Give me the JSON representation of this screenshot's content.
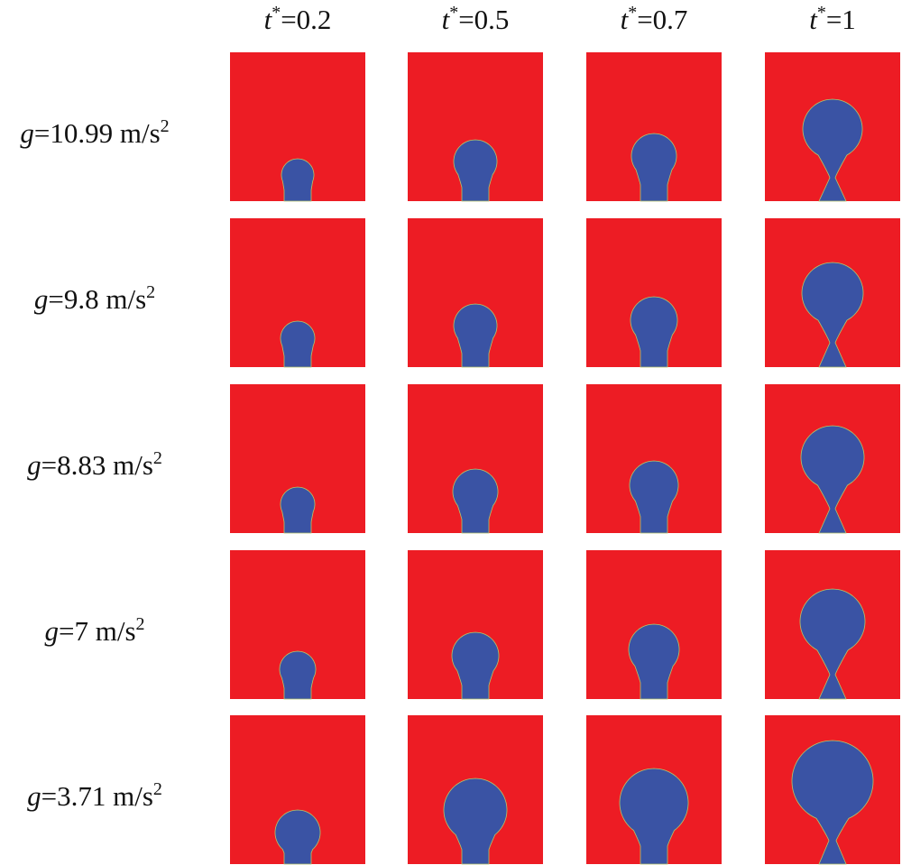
{
  "columns": [
    {
      "var": "t",
      "sup": "*",
      "rest": "=0.2"
    },
    {
      "var": "t",
      "sup": "*",
      "rest": "=0.5"
    },
    {
      "var": "t",
      "sup": "*",
      "rest": "=0.7"
    },
    {
      "var": "t",
      "sup": "*",
      "rest": "=1"
    }
  ],
  "rows": [
    {
      "var": "g",
      "rest": "=10.99 m/s",
      "sup": "2"
    },
    {
      "var": "g",
      "rest": "=9.8 m/s",
      "sup": "2"
    },
    {
      "var": "g",
      "rest": "=8.83 m/s",
      "sup": "2"
    },
    {
      "var": "g",
      "rest": "=7 m/s",
      "sup": "2"
    },
    {
      "var": "g",
      "rest": "=3.71 m/s",
      "sup": "2"
    }
  ]
}
